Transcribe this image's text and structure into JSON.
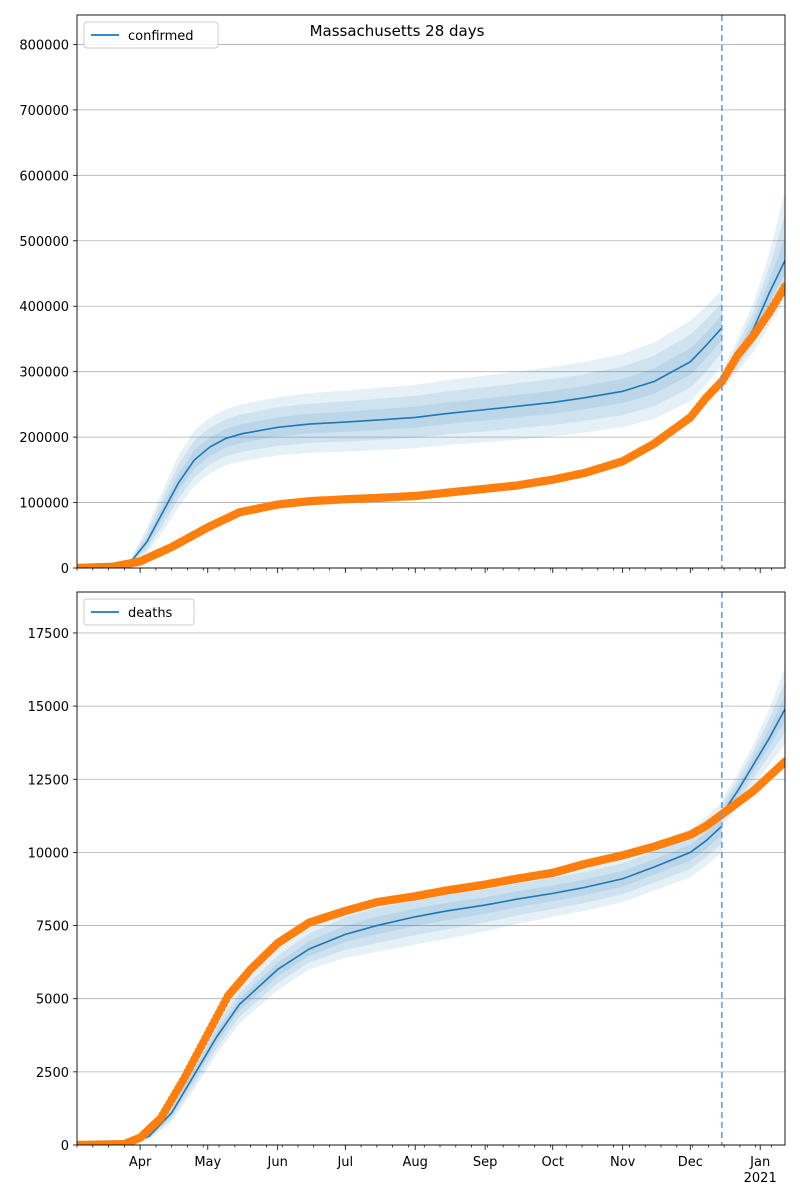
{
  "figure_title": "Massachusetts 28 days",
  "colors": {
    "model": "#1f77b4",
    "observed": "#ff7f0e",
    "band": "#1f77b4",
    "cutoff": "#6a9fd4",
    "grid": "#b0b0b0"
  },
  "x_axis": {
    "month_labels": [
      "Apr",
      "May",
      "Jun",
      "Jul",
      "Aug",
      "Sep",
      "Oct",
      "Nov",
      "Dec",
      "Jan"
    ],
    "year_label": "2021",
    "range": [
      "2020-03-04",
      "2021-01-12"
    ],
    "cutoff_date": "2020-12-15"
  },
  "chart_data": [
    {
      "type": "line",
      "title": "Massachusetts 28 days",
      "legend": "top-left",
      "grid": "y",
      "ylim": [
        0,
        845000
      ],
      "ytick_labels": [
        "0",
        "100000",
        "200000",
        "300000",
        "400000",
        "500000",
        "600000",
        "700000",
        "800000"
      ],
      "cutoff_date": "2020-12-15",
      "series": [
        {
          "name": "confirmed",
          "role": "model",
          "x": [
            "2020-03-04",
            "2020-03-20",
            "2020-03-28",
            "2020-04-04",
            "2020-04-11",
            "2020-04-18",
            "2020-04-25",
            "2020-05-02",
            "2020-05-09",
            "2020-05-16",
            "2020-06-01",
            "2020-06-15",
            "2020-07-01",
            "2020-07-15",
            "2020-08-01",
            "2020-08-15",
            "2020-09-01",
            "2020-09-15",
            "2020-10-01",
            "2020-10-15",
            "2020-11-01",
            "2020-11-15",
            "2020-12-01",
            "2020-12-08",
            "2020-12-15"
          ],
          "y": [
            0,
            2000,
            10000,
            40000,
            85000,
            130000,
            165000,
            185000,
            198000,
            205000,
            215000,
            220000,
            223000,
            226000,
            230000,
            236000,
            242000,
            247000,
            253000,
            260000,
            270000,
            285000,
            315000,
            340000,
            367000
          ]
        },
        {
          "name": "",
          "role": "model-projection",
          "x": [
            "2020-12-15",
            "2020-12-22",
            "2020-12-29",
            "2021-01-05",
            "2021-01-12"
          ],
          "y": [
            283000,
            322000,
            365000,
            420000,
            470000
          ]
        },
        {
          "name": "",
          "role": "observed",
          "x": [
            "2020-03-04",
            "2020-03-20",
            "2020-04-01",
            "2020-04-15",
            "2020-05-01",
            "2020-05-15",
            "2020-06-01",
            "2020-06-15",
            "2020-07-01",
            "2020-07-15",
            "2020-08-01",
            "2020-08-15",
            "2020-09-01",
            "2020-09-15",
            "2020-10-01",
            "2020-10-15",
            "2020-11-01",
            "2020-11-15",
            "2020-12-01",
            "2020-12-08",
            "2020-12-15",
            "2020-12-22",
            "2020-12-29",
            "2021-01-05",
            "2021-01-12"
          ],
          "y": [
            0,
            2000,
            10000,
            32000,
            62000,
            85000,
            97000,
            102000,
            105000,
            107000,
            110000,
            115000,
            121000,
            126000,
            135000,
            145000,
            163000,
            190000,
            230000,
            260000,
            285000,
            325000,
            355000,
            390000,
            430000
          ]
        }
      ],
      "bands": {
        "x": [
          "2020-03-04",
          "2020-03-20",
          "2020-03-28",
          "2020-04-04",
          "2020-04-11",
          "2020-04-18",
          "2020-04-25",
          "2020-05-02",
          "2020-05-09",
          "2020-05-16",
          "2020-06-01",
          "2020-06-15",
          "2020-07-01",
          "2020-07-15",
          "2020-08-01",
          "2020-08-15",
          "2020-09-01",
          "2020-09-15",
          "2020-10-01",
          "2020-10-15",
          "2020-11-01",
          "2020-11-15",
          "2020-12-01",
          "2020-12-08",
          "2020-12-15"
        ],
        "upper": [
          0,
          2600,
          15000,
          62000,
          118000,
          172000,
          210000,
          230000,
          242000,
          250000,
          261000,
          267000,
          271000,
          275000,
          280000,
          287000,
          294000,
          300000,
          307000,
          315000,
          327000,
          345000,
          378000,
          400000,
          425000
        ],
        "lower": [
          0,
          1400,
          6000,
          22000,
          55000,
          93000,
          125000,
          145000,
          157000,
          163000,
          172000,
          176000,
          178000,
          180000,
          183000,
          188000,
          192000,
          196000,
          201000,
          207000,
          215000,
          228000,
          255000,
          280000,
          310000
        ],
        "proj_x": [
          "2020-12-15",
          "2020-12-22",
          "2020-12-29",
          "2021-01-05",
          "2021-01-12"
        ],
        "proj_upper": [
          300000,
          350000,
          405000,
          480000,
          575000
        ],
        "proj_lower": [
          270000,
          300000,
          330000,
          370000,
          410000
        ]
      }
    },
    {
      "type": "line",
      "title": "",
      "legend": "top-left",
      "grid": "y",
      "ylim": [
        0,
        18900
      ],
      "ytick_labels": [
        "0",
        "2500",
        "5000",
        "7500",
        "10000",
        "12500",
        "15000",
        "17500"
      ],
      "cutoff_date": "2020-12-15",
      "series": [
        {
          "name": "deaths",
          "role": "model",
          "x": [
            "2020-03-04",
            "2020-03-25",
            "2020-04-05",
            "2020-04-15",
            "2020-04-25",
            "2020-05-05",
            "2020-05-15",
            "2020-06-01",
            "2020-06-15",
            "2020-07-01",
            "2020-07-15",
            "2020-08-01",
            "2020-08-15",
            "2020-09-01",
            "2020-09-15",
            "2020-10-01",
            "2020-10-15",
            "2020-11-01",
            "2020-11-15",
            "2020-12-01",
            "2020-12-08",
            "2020-12-15"
          ],
          "y": [
            0,
            0,
            300,
            1100,
            2400,
            3700,
            4800,
            6000,
            6700,
            7200,
            7500,
            7800,
            8000,
            8200,
            8400,
            8600,
            8800,
            9100,
            9500,
            10000,
            10400,
            10900
          ]
        },
        {
          "name": "",
          "role": "model-projection",
          "x": [
            "2020-12-15",
            "2020-12-22",
            "2020-12-29",
            "2021-01-05",
            "2021-01-12"
          ],
          "y": [
            11300,
            12100,
            13000,
            13900,
            14900
          ]
        },
        {
          "name": "",
          "role": "observed",
          "x": [
            "2020-03-04",
            "2020-03-25",
            "2020-04-01",
            "2020-04-10",
            "2020-04-20",
            "2020-05-01",
            "2020-05-10",
            "2020-05-20",
            "2020-06-01",
            "2020-06-15",
            "2020-07-01",
            "2020-07-15",
            "2020-08-01",
            "2020-08-15",
            "2020-09-01",
            "2020-09-15",
            "2020-10-01",
            "2020-10-15",
            "2020-11-01",
            "2020-11-15",
            "2020-12-01",
            "2020-12-08",
            "2020-12-15",
            "2020-12-22",
            "2020-12-29",
            "2021-01-05",
            "2021-01-12"
          ],
          "y": [
            0,
            30,
            250,
            900,
            2200,
            3800,
            5100,
            6000,
            6900,
            7600,
            8000,
            8300,
            8500,
            8700,
            8900,
            9100,
            9300,
            9600,
            9900,
            10200,
            10600,
            10900,
            11300,
            11700,
            12100,
            12600,
            13100
          ]
        }
      ],
      "bands": {
        "x": [
          "2020-03-04",
          "2020-03-25",
          "2020-04-05",
          "2020-04-15",
          "2020-04-25",
          "2020-05-05",
          "2020-05-15",
          "2020-06-01",
          "2020-06-15",
          "2020-07-01",
          "2020-07-15",
          "2020-08-01",
          "2020-08-15",
          "2020-09-01",
          "2020-09-15",
          "2020-10-01",
          "2020-10-15",
          "2020-11-01",
          "2020-11-15",
          "2020-12-01",
          "2020-12-08",
          "2020-12-15"
        ],
        "upper": [
          0,
          0,
          450,
          1450,
          2950,
          4300,
          5400,
          6700,
          7500,
          8100,
          8400,
          8650,
          8850,
          9000,
          9200,
          9400,
          9600,
          9900,
          10300,
          10800,
          11200,
          11700
        ],
        "lower": [
          0,
          0,
          180,
          800,
          1900,
          3100,
          4150,
          5300,
          6000,
          6400,
          6600,
          6850,
          7050,
          7300,
          7550,
          7800,
          8000,
          8300,
          8700,
          9150,
          9550,
          10000
        ],
        "proj_x": [
          "2020-12-15",
          "2020-12-22",
          "2020-12-29",
          "2021-01-05",
          "2021-01-12"
        ],
        "proj_upper": [
          11800,
          12700,
          13700,
          14900,
          16300
        ],
        "proj_lower": [
          10900,
          11500,
          12300,
          13000,
          13700
        ]
      }
    }
  ]
}
